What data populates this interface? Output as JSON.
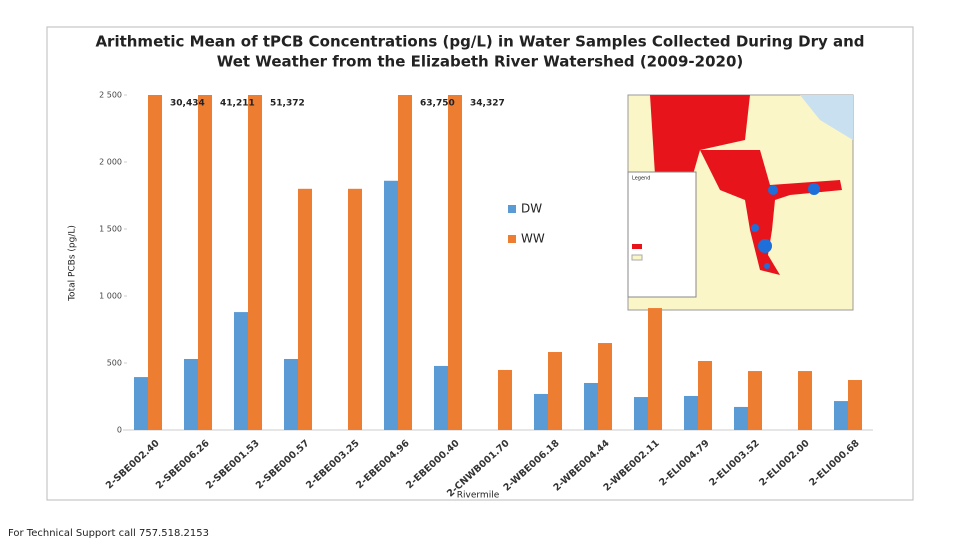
{
  "chart_data": {
    "type": "bar",
    "title": [
      "Arithmetic Mean of tPCB Concentrations (pg/L) in Water Samples Collected During Dry and",
      "Wet Weather from the Elizabeth River Watershed (2009-2020)"
    ],
    "y_label": "Total PCBs (pg/L)",
    "x_label": "Rivermile",
    "categories": [
      "2-SBE002.40",
      "2-SBE006.26",
      "2-SBE001.53",
      "2-SBE000.57",
      "2-EBE003.25",
      "2-EBE004.96",
      "2-EBE000.40",
      "2-CNWB001.70",
      "2-WBE006.18",
      "2-WBE004.44",
      "2-WBE002.11",
      "2-ELI004.79",
      "2-ELI003.52",
      "2-ELI002.00",
      "2-ELI000.68"
    ],
    "series": [
      {
        "name": "DW",
        "color": "#5b9bd5",
        "values": [
          395,
          530,
          880,
          530,
          null,
          1860,
          478,
          null,
          269,
          351,
          246,
          254,
          172,
          null,
          216
        ]
      },
      {
        "name": "WW",
        "color": "#ed7d31",
        "values": [
          30434,
          41211,
          51372,
          1800,
          1800,
          63750,
          34327,
          448,
          582,
          649,
          910,
          515,
          440,
          440,
          373
        ],
        "value_labels": [
          "30,434",
          "41,211",
          "51,372",
          null,
          null,
          "63,750",
          "34,327",
          null,
          null,
          null,
          null,
          null,
          null,
          null,
          null
        ]
      }
    ],
    "ylim": [
      0,
      2500
    ],
    "yticks": [
      0,
      500,
      {
        "value": 1000,
        "label": "1 000"
      },
      {
        "value": 1500,
        "label": "1 500"
      },
      {
        "value": 2000,
        "label": "2 000"
      },
      {
        "value": 2500,
        "label": "2 500"
      }
    ],
    "legend": "right"
  },
  "map": {
    "legend_title": "Legend"
  },
  "footer": "For Technical Support call 757.518.2153"
}
